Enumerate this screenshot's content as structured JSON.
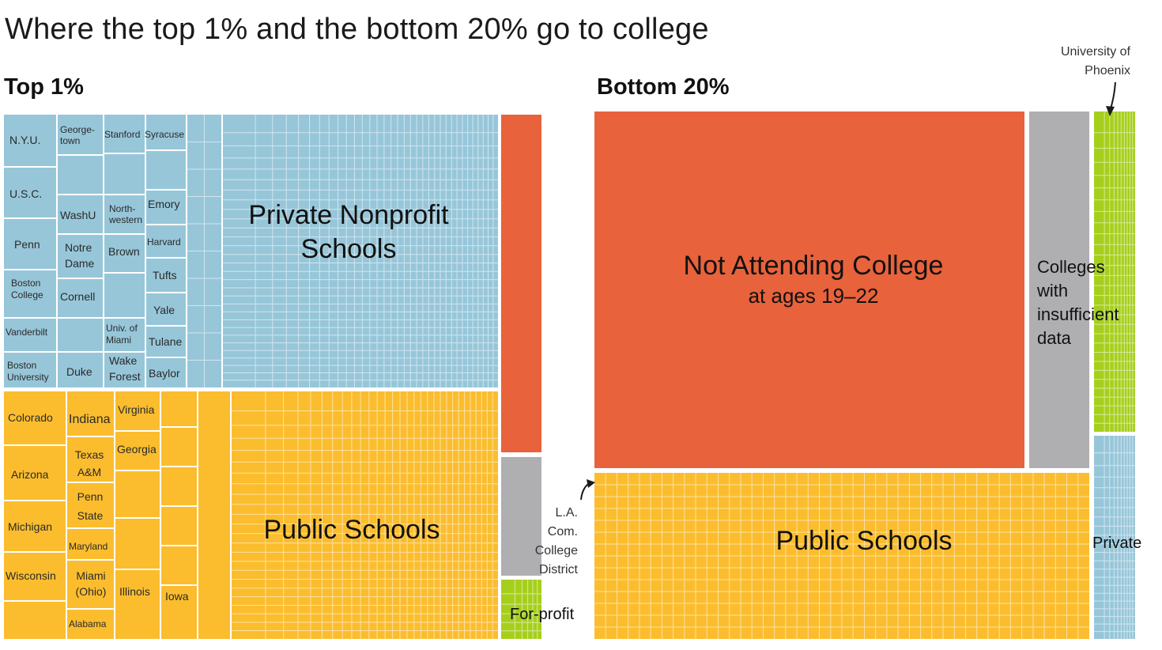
{
  "title": "Where the top 1% and the bottom 20% go to college",
  "chart_data": {
    "type": "treemap",
    "title": "Where the top 1% and the bottom 20% go to college",
    "colors": {
      "private": "#97c6d9",
      "public": "#fbbd2e",
      "not_attending": "#e8623c",
      "insufficient": "#afafb1",
      "for_profit": "#a6cf1d"
    },
    "panels": [
      {
        "name": "Top 1%",
        "categories": [
          {
            "key": "private",
            "label_lines": [
              "Private Nonprofit",
              "Schools"
            ],
            "schools": [
              "N.Y.U.",
              "Georgetown",
              "Stanford",
              "Syracuse",
              "U.S.C.",
              "WashU",
              "Northwestern",
              "Emory",
              "Penn",
              "Notre Dame",
              "Brown",
              "Harvard",
              "Tufts",
              "Boston College",
              "Cornell",
              "Yale",
              "Vanderbilt",
              "Univ. of Miami",
              "Tulane",
              "Boston University",
              "Duke",
              "Wake Forest",
              "Baylor"
            ]
          },
          {
            "key": "public",
            "label_lines": [
              "Public Schools"
            ],
            "schools": [
              "Colorado",
              "Indiana",
              "Virginia",
              "Texas A&M",
              "Georgia",
              "Arizona",
              "Penn State",
              "Michigan",
              "Maryland",
              "Wisconsin",
              "Miami (Ohio)",
              "Illinois",
              "Iowa",
              "Alabama"
            ]
          },
          {
            "key": "not_attending",
            "label_lines": []
          },
          {
            "key": "insufficient",
            "label_lines": []
          },
          {
            "key": "for_profit",
            "label_lines": [
              "For-profit"
            ]
          }
        ]
      },
      {
        "name": "Bottom 20%",
        "categories": [
          {
            "key": "not_attending",
            "label_lines": [
              "Not Attending College",
              "at ages 19–22"
            ]
          },
          {
            "key": "insufficient",
            "label_lines": [
              "Colleges",
              "with",
              "insufficient",
              "data"
            ]
          },
          {
            "key": "for_profit",
            "label_lines": [],
            "schools": [
              "University of Phoenix"
            ]
          },
          {
            "key": "public",
            "label_lines": [
              "Public Schools"
            ],
            "schools": [
              "L.A. Com. College District"
            ]
          },
          {
            "key": "private",
            "label_lines": [
              "Private"
            ]
          }
        ]
      }
    ],
    "annotations": [
      {
        "text_lines": [
          "University of",
          "Phoenix"
        ]
      },
      {
        "text_lines": [
          "L.A.",
          "Com.",
          "College",
          "District"
        ]
      }
    ],
    "labels": {
      "nyu": "N.Y.U.",
      "georgetown": [
        "George-",
        "town"
      ],
      "stanford": "Stanford",
      "syracuse": "Syracuse",
      "usc": "U.S.C.",
      "washu": "WashU",
      "northwestern": [
        "North-",
        "western"
      ],
      "emory": "Emory",
      "penn": "Penn",
      "notre_dame": [
        "Notre",
        "Dame"
      ],
      "brown": "Brown",
      "harvard": "Harvard",
      "tufts": "Tufts",
      "boston_college": [
        "Boston",
        "College"
      ],
      "cornell": "Cornell",
      "yale": "Yale",
      "vanderbilt": "Vanderbilt",
      "univ_miami": [
        "Univ. of",
        "Miami"
      ],
      "tulane": "Tulane",
      "boston_university": [
        "Boston",
        "University"
      ],
      "duke": "Duke",
      "wake_forest": [
        "Wake",
        "Forest"
      ],
      "baylor": "Baylor",
      "colorado": "Colorado",
      "indiana": "Indiana",
      "virginia": "Virginia",
      "texas_am": [
        "Texas",
        "A&M"
      ],
      "georgia": "Georgia",
      "arizona": "Arizona",
      "penn_state": [
        "Penn",
        "State"
      ],
      "michigan": "Michigan",
      "maryland": "Maryland",
      "wisconsin": "Wisconsin",
      "miami_ohio": [
        "Miami",
        "(Ohio)"
      ],
      "illinois": "Illinois",
      "iowa": "Iowa",
      "alabama": "Alabama"
    }
  }
}
